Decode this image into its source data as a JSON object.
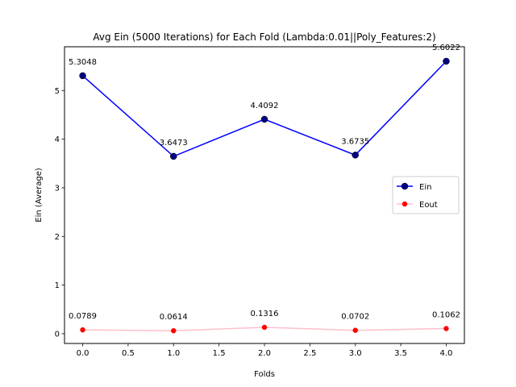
{
  "chart_data": {
    "type": "line",
    "title": "Avg Ein (5000 Iterations) for Each Fold (Lambda:0.01||Poly_Features:2)",
    "xlabel": "Folds",
    "ylabel": "Ein (Average)",
    "x": [
      0,
      1,
      2,
      3,
      4
    ],
    "xlim": [
      -0.2,
      4.2
    ],
    "ylim": [
      -0.2,
      5.9
    ],
    "xticks": [
      0.0,
      0.5,
      1.0,
      1.5,
      2.0,
      2.5,
      3.0,
      3.5,
      4.0
    ],
    "xtick_labels": [
      "0.0",
      "0.5",
      "1.0",
      "1.5",
      "2.0",
      "2.5",
      "3.0",
      "3.5",
      "4.0"
    ],
    "yticks": [
      0,
      1,
      2,
      3,
      4,
      5
    ],
    "ytick_labels": [
      "0",
      "1",
      "2",
      "3",
      "4",
      "5"
    ],
    "grid": false,
    "legend_position": "center-right",
    "series": [
      {
        "name": "Ein",
        "values": [
          5.3048,
          3.6473,
          4.4092,
          3.6735,
          5.6022
        ],
        "labels": [
          "5.3048",
          "3.6473",
          "4.4092",
          "3.6735",
          "5.6022"
        ],
        "line_color": "#0000ff",
        "marker_color": "#000080"
      },
      {
        "name": "Eout",
        "values": [
          0.0789,
          0.0614,
          0.1316,
          0.0702,
          0.1062
        ],
        "labels": [
          "0.0789",
          "0.0614",
          "0.1316",
          "0.0702",
          "0.1062"
        ],
        "line_color": "#ffc0cb",
        "marker_color": "#ff0000"
      }
    ]
  }
}
